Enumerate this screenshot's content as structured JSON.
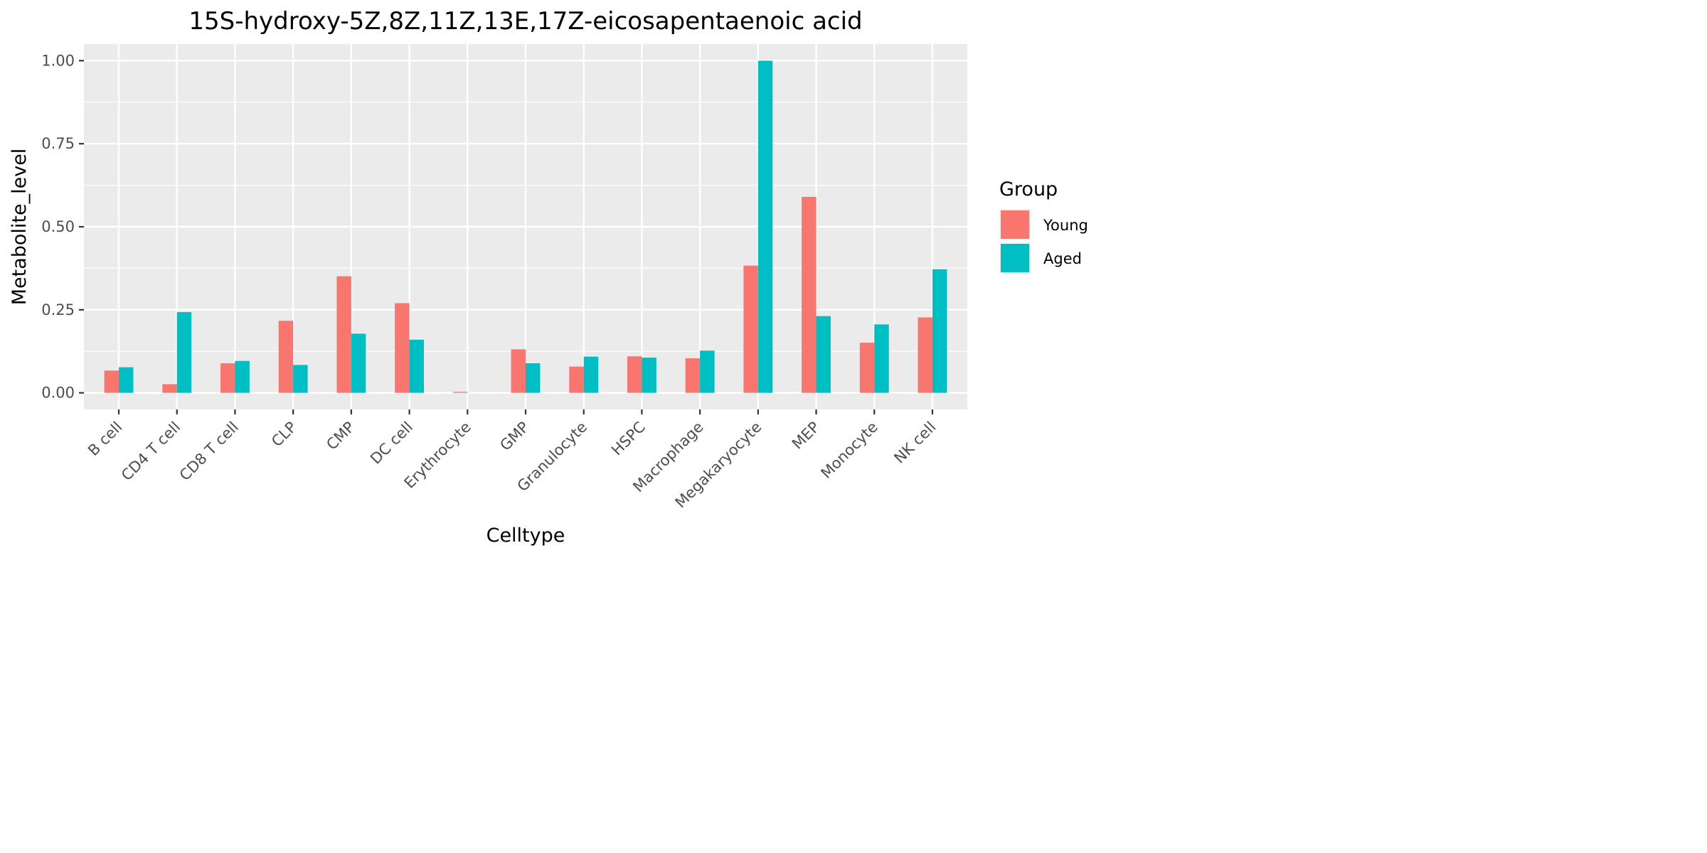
{
  "chart_data": {
    "type": "bar",
    "title": "15S-hydroxy-5Z,8Z,11Z,13E,17Z-eicosapentaenoic acid",
    "xlabel": "Celltype",
    "ylabel": "Metabolite_level",
    "ylim": [
      -0.05,
      1.05
    ],
    "yticks": [
      "0.00",
      "0.25",
      "0.50",
      "0.75",
      "1.00"
    ],
    "grid": true,
    "legend": {
      "title": "Group",
      "position": "right"
    },
    "categories": [
      "B cell",
      "CD4 T cell",
      "CD8 T cell",
      "CLP",
      "CMP",
      "DC cell",
      "Erythrocyte",
      "GMP",
      "Granulocyte",
      "HSPC",
      "Macrophage",
      "Megakaryocyte",
      "MEP",
      "Monocyte",
      "NK cell"
    ],
    "series": [
      {
        "name": "Young",
        "color": "#F8766D",
        "values": [
          0.067,
          0.026,
          0.089,
          0.217,
          0.351,
          0.27,
          0.003,
          0.131,
          0.079,
          0.11,
          0.104,
          0.383,
          0.59,
          0.151,
          0.227
        ]
      },
      {
        "name": "Aged",
        "color": "#00BFC4",
        "values": [
          0.077,
          0.243,
          0.096,
          0.084,
          0.178,
          0.16,
          0.0,
          0.089,
          0.109,
          0.106,
          0.127,
          1.0,
          0.231,
          0.206,
          0.372
        ]
      }
    ],
    "colors": {
      "panel_background": "#EBEBEB",
      "grid": "#FFFFFF",
      "tick_text": "#4D4D4D",
      "tick_mark": "#333333"
    }
  }
}
